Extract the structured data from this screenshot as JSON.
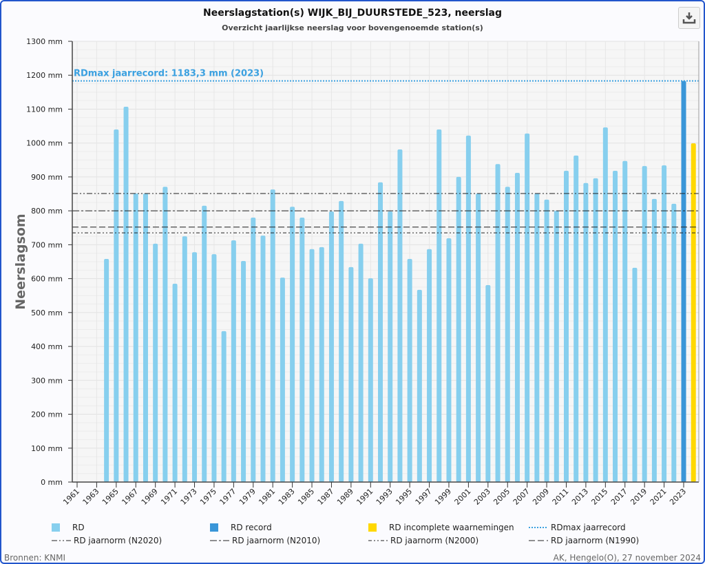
{
  "chart_data": {
    "type": "bar",
    "title": "Neerslagstation(s) WIJK_BIJ_DUURSTEDE_523, neerslag",
    "subtitle": "Overzicht jaarlijkse neerslag voor bovengenoemde station(s)",
    "ylabel": "Neerslagsom",
    "xlabel": "",
    "ylim": [
      0,
      1300
    ],
    "xlim": [
      1961,
      2024
    ],
    "y_ticks": [
      "0 mm",
      "100 mm",
      "200 mm",
      "300 mm",
      "400 mm",
      "500 mm",
      "600 mm",
      "700 mm",
      "800 mm",
      "900 mm",
      "1000 mm",
      "1100 mm",
      "1200 mm",
      "1300 mm"
    ],
    "x_ticks": [
      1961,
      1963,
      1965,
      1967,
      1969,
      1971,
      1973,
      1975,
      1977,
      1979,
      1981,
      1983,
      1985,
      1987,
      1989,
      1991,
      1993,
      1995,
      1997,
      1999,
      2001,
      2003,
      2005,
      2007,
      2009,
      2011,
      2013,
      2015,
      2017,
      2019,
      2021,
      2023
    ],
    "grid": true,
    "years": [
      1964,
      1965,
      1966,
      1967,
      1968,
      1969,
      1970,
      1971,
      1972,
      1973,
      1974,
      1975,
      1976,
      1977,
      1978,
      1979,
      1980,
      1981,
      1982,
      1983,
      1984,
      1985,
      1986,
      1987,
      1988,
      1989,
      1990,
      1991,
      1992,
      1993,
      1994,
      1995,
      1996,
      1997,
      1998,
      1999,
      2000,
      2001,
      2002,
      2003,
      2004,
      2005,
      2006,
      2007,
      2008,
      2009,
      2010,
      2011,
      2012,
      2013,
      2014,
      2015,
      2016,
      2017,
      2018,
      2019,
      2020,
      2021,
      2022,
      2023,
      2024
    ],
    "values": [
      658,
      1040,
      1107,
      851,
      851,
      703,
      871,
      585,
      725,
      678,
      815,
      672,
      445,
      713,
      652,
      780,
      727,
      863,
      603,
      812,
      780,
      687,
      693,
      798,
      829,
      634,
      703,
      601,
      884,
      798,
      981,
      658,
      567,
      687,
      1040,
      719,
      900,
      1022,
      851,
      581,
      938,
      871,
      912,
      1028,
      851,
      833,
      800,
      918,
      963,
      882,
      896,
      1046,
      918,
      947,
      632,
      932,
      835,
      934,
      821,
      1183.3,
      999
    ],
    "record_year": 2023,
    "incomplete_year": 2024,
    "colors": {
      "rd": "#87cfee",
      "record": "#3a96d8",
      "incomplete": "#ffd800",
      "max": "#3aa0e0"
    },
    "max_line": {
      "value": 1183.3,
      "label": "RDmax jaarrecord: 1183,3 mm (2023)"
    },
    "norms": [
      {
        "name": "RD jaarnorm (N2020)",
        "value": 851,
        "dash": "8,3,2,3,2,3"
      },
      {
        "name": "RD jaarnorm (N2010)",
        "value": 800,
        "dash": "10,3,3,3"
      },
      {
        "name": "RD jaarnorm (N2000)",
        "value": 735,
        "dash": "5,3,2,3,2,3"
      },
      {
        "name": "RD jaarnorm (N1990)",
        "value": 752,
        "dash": "9,4"
      }
    ],
    "legend": [
      "RD",
      "RD record",
      "RD incomplete waarnemingen",
      "RDmax jaarrecord",
      "RD jaarnorm (N2020)",
      "RD jaarnorm (N2010)",
      "RD jaarnorm (N2000)",
      "RD jaarnorm (N1990)"
    ],
    "legend_placement": "bottom"
  },
  "footer": {
    "source": "Bronnen: KNMI",
    "credit": "AK, Hengelo(O), 27 november 2024"
  },
  "download_icon": "download-icon"
}
